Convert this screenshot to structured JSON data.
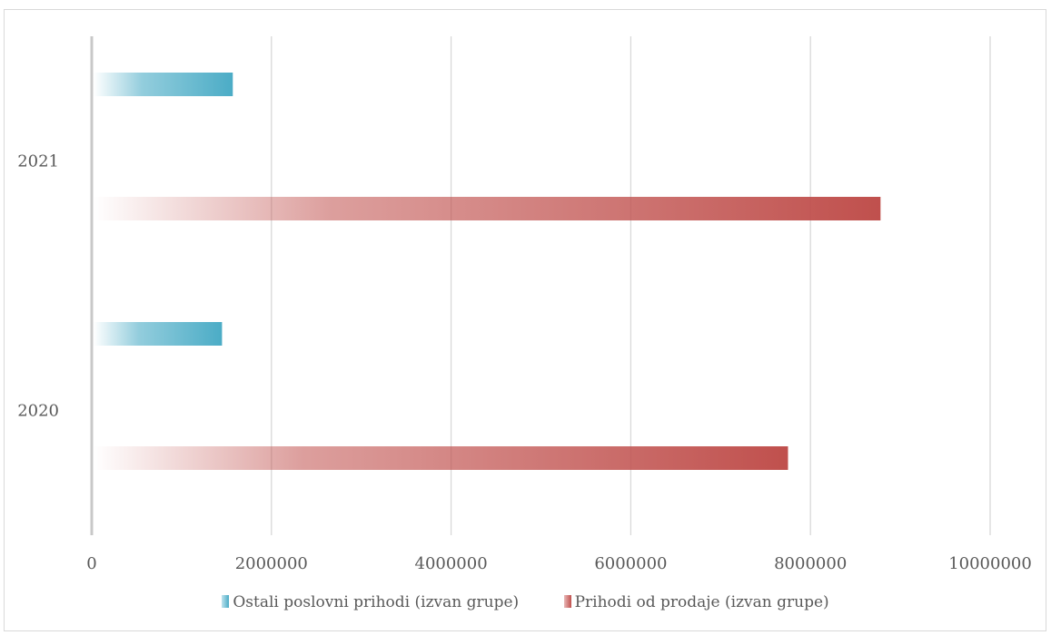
{
  "chart_data": {
    "type": "bar",
    "orientation": "horizontal",
    "categories": [
      "2020",
      "2021"
    ],
    "series": [
      {
        "name": "Prihodi od prodaje (izvan grupe)",
        "values": [
          7750000,
          8780000
        ],
        "color": "#c0504d"
      },
      {
        "name": "Ostali poslovni prihodi (izvan grupe)",
        "values": [
          1450000,
          1570000
        ],
        "color": "#4bacc6"
      }
    ],
    "xlim": [
      0,
      10000000
    ],
    "x_ticks": [
      "0",
      "2000000",
      "4000000",
      "6000000",
      "8000000",
      "10000000"
    ],
    "grid": true,
    "legend_position": "bottom",
    "title": "",
    "xlabel": "",
    "ylabel": ""
  },
  "legend": {
    "items": [
      {
        "label": "Ostali poslovni prihodi (izvan grupe)",
        "color": "#4bacc6"
      },
      {
        "label": "Prihodi od prodaje (izvan grupe)",
        "color": "#c0504d"
      }
    ]
  }
}
